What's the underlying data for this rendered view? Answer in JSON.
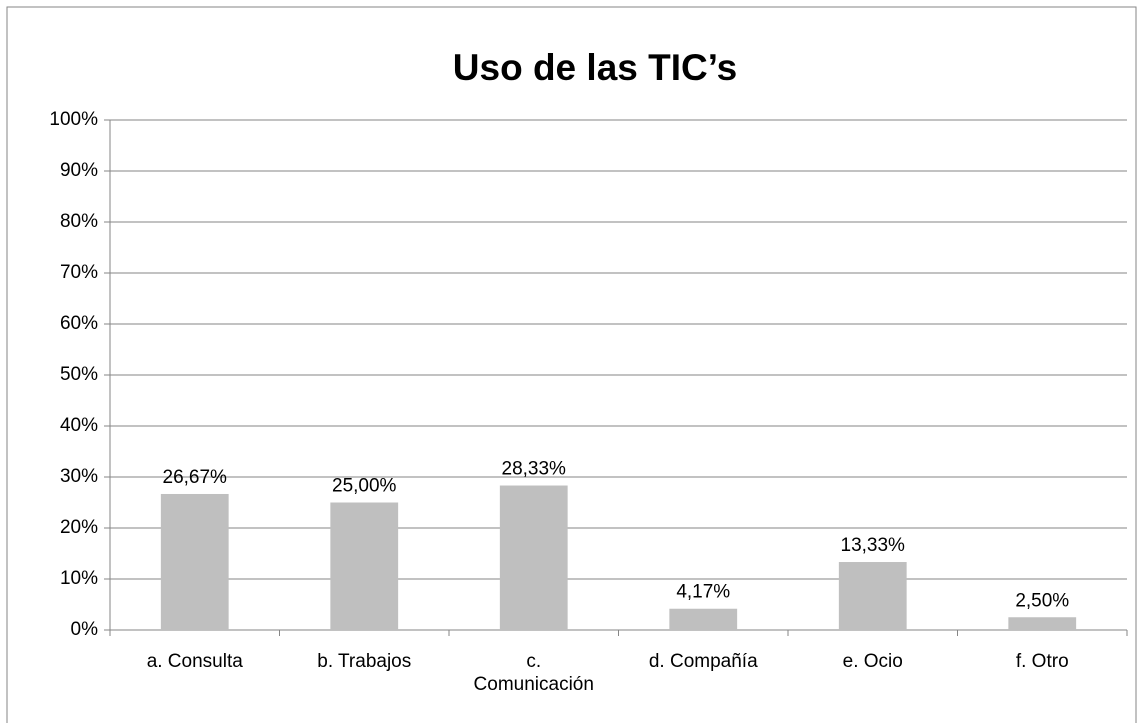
{
  "chart_data": {
    "type": "bar",
    "title": "Uso de las TIC’s",
    "categories": [
      "a.  Consulta",
      "b. Trabajos",
      "c. Comunicación",
      "d. Compañía",
      "e. Ocio",
      "f. Otro"
    ],
    "values": [
      26.67,
      25,
      28.33,
      4.17,
      13.33,
      2.5
    ],
    "value_labels": [
      "26,67%",
      "25,00%",
      "28,33%",
      "4,17%",
      "13,33%",
      "2,50%"
    ],
    "color": "#bfbfbf",
    "ylim": [
      0,
      100
    ],
    "yticks": [
      {
        "value": 0,
        "label": "0%"
      },
      {
        "value": 10,
        "label": "10%"
      },
      {
        "value": 20,
        "label": "20%"
      },
      {
        "value": 30,
        "label": "30%"
      },
      {
        "value": 40,
        "label": "40%"
      },
      {
        "value": 50,
        "label": "50%"
      },
      {
        "value": 60,
        "label": "60%"
      },
      {
        "value": 70,
        "label": "70%"
      },
      {
        "value": 80,
        "label": "80%"
      },
      {
        "value": 90,
        "label": "90%"
      },
      {
        "value": 100,
        "label": "100%"
      }
    ],
    "grid": true
  }
}
